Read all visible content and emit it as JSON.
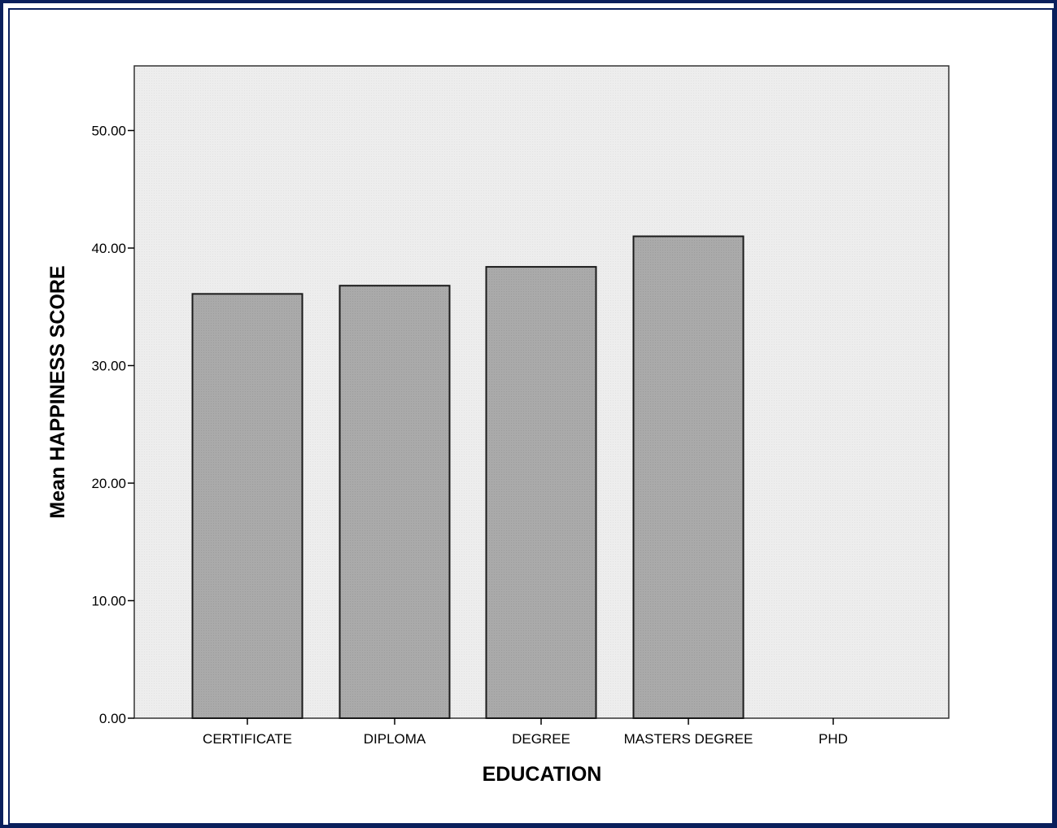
{
  "chart_data": {
    "type": "bar",
    "title": "",
    "xlabel": "EDUCATION",
    "ylabel": "Mean HAPPINESS SCORE",
    "categories": [
      "CERTIFICATE",
      "DIPLOMA",
      "DEGREE",
      "MASTERS DEGREE",
      "PHD"
    ],
    "values": [
      36.1,
      36.8,
      38.4,
      41.0,
      null
    ],
    "ylim": [
      0,
      55.5
    ],
    "yticks": [
      0,
      10,
      20,
      30,
      40,
      50
    ],
    "ytick_labels": [
      "0.00",
      "10.00",
      "20.00",
      "30.00",
      "40.00",
      "50.00"
    ],
    "grid": false,
    "legend": "none",
    "colors": {
      "bar_fill": "#a9a9a9",
      "bar_stroke": "#1a1a1a",
      "plot_background": "#ececec",
      "frame_border": "#0a1f5c"
    }
  }
}
